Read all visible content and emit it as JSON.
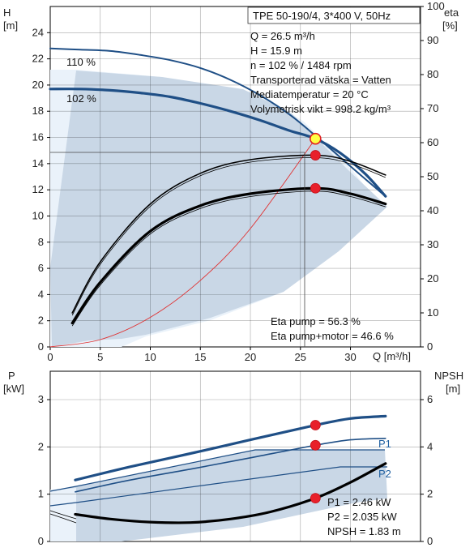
{
  "chart_data": [
    {
      "type": "line",
      "title": "TPE 50-190/4, 3*400 V, 50Hz",
      "xlabel": "Q [m³/h]",
      "ylabel_left": [
        "H",
        "[m]"
      ],
      "ylabel_right": [
        "eta",
        "[%]"
      ],
      "xlim": [
        0,
        37
      ],
      "ylim_left": [
        0,
        26
      ],
      "ylim_right": [
        0,
        100
      ],
      "x_ticks": [
        0,
        5,
        10,
        15,
        20,
        25,
        30
      ],
      "y_ticks_left": [
        0,
        2,
        4,
        6,
        8,
        10,
        12,
        14,
        16,
        18,
        20,
        22,
        24
      ],
      "y_ticks_right": [
        0,
        10,
        20,
        30,
        40,
        50,
        60,
        70,
        80,
        90,
        100
      ],
      "grid": true,
      "info_lines": [
        "Q = 26.5 m³/h",
        "H = 15.9 m",
        "n = 102 % / 1484 rpm",
        "Transporterad vätska = Vatten",
        "Mediatemperatur = 20 °C",
        "Volymetrisk vikt = 998.2 kg/m³"
      ],
      "eta_notes": [
        "Eta pump = 56.3 %",
        "Eta pump+motor = 46.6 %"
      ],
      "curve_labels": [
        "110 %",
        "102 %"
      ],
      "series": [
        {
          "name": "110 %",
          "axis": "left",
          "x": [
            0,
            3,
            6,
            9,
            12,
            15,
            18,
            21,
            24,
            27,
            30,
            33.5
          ],
          "y": [
            22.8,
            22.7,
            22.6,
            22.3,
            21.9,
            21.3,
            20.4,
            19.2,
            17.7,
            15.8,
            13.8,
            11.5
          ]
        },
        {
          "name": "102 %",
          "axis": "left",
          "x": [
            0,
            3,
            6,
            9,
            12,
            15,
            18,
            21,
            24,
            26.5,
            29,
            31.5,
            33.5
          ],
          "y": [
            19.7,
            19.7,
            19.6,
            19.4,
            19.1,
            18.6,
            18.0,
            17.3,
            16.5,
            15.9,
            14.8,
            13.2,
            11.5
          ]
        },
        {
          "name": "System curve",
          "axis": "left",
          "x": [
            0,
            5,
            10,
            15,
            20,
            26.5
          ],
          "y": [
            0,
            0.56,
            2.26,
            5.08,
            9.04,
            15.9
          ]
        },
        {
          "name": "Eta pump",
          "axis": "right",
          "x": [
            2.2,
            5,
            10,
            15,
            20,
            26.5,
            30,
            33.5
          ],
          "y": [
            10,
            25,
            42,
            51,
            55,
            56.3,
            54.5,
            50.5
          ]
        },
        {
          "name": "Eta pump+motor",
          "axis": "right",
          "x": [
            2.2,
            5,
            10,
            15,
            20,
            26.5,
            30,
            33.5
          ],
          "y": [
            7,
            19,
            34,
            41.5,
            45,
            46.6,
            45,
            42
          ]
        }
      ],
      "markers": [
        {
          "x": 26.5,
          "y": 15.9,
          "axis": "left",
          "style": "operating-point"
        },
        {
          "x": 26.5,
          "y": 56.3,
          "axis": "right",
          "style": "dot"
        },
        {
          "x": 26.5,
          "y": 46.6,
          "axis": "right",
          "style": "dot"
        }
      ]
    },
    {
      "type": "line",
      "ylabel_left": [
        "P",
        "[kW]"
      ],
      "ylabel_right": [
        "NPSH",
        "[m]"
      ],
      "xlim": [
        0,
        37
      ],
      "ylim_left": [
        0,
        3.6
      ],
      "ylim_right": [
        0,
        7.2
      ],
      "y_ticks_left": [
        0,
        1,
        2,
        3
      ],
      "y_ticks_right": [
        0,
        2,
        4,
        6
      ],
      "grid": true,
      "value_notes": [
        "P1 = 2.46 kW",
        "P2 = 2.035 kW",
        "NPSH = 1.83 m"
      ],
      "series_labels": [
        "P1",
        "P2"
      ],
      "series": [
        {
          "name": "P1",
          "axis": "left",
          "x": [
            2.5,
            8,
            14,
            20,
            26.5,
            30,
            33.5
          ],
          "y": [
            1.3,
            1.58,
            1.86,
            2.15,
            2.46,
            2.6,
            2.65
          ]
        },
        {
          "name": "P2",
          "axis": "left",
          "x": [
            2.5,
            8,
            14,
            20,
            26.5,
            30,
            33.5
          ],
          "y": [
            1.05,
            1.3,
            1.53,
            1.77,
            2.035,
            2.15,
            2.18
          ]
        },
        {
          "name": "NPSH",
          "axis": "right",
          "x": [
            2.5,
            6,
            10,
            14,
            18,
            22,
            26.5,
            30,
            33.5
          ],
          "y": [
            1.15,
            0.95,
            0.82,
            0.8,
            0.95,
            1.25,
            1.83,
            2.5,
            3.3
          ]
        }
      ],
      "markers": [
        {
          "x": 26.5,
          "y": 2.46,
          "axis": "left"
        },
        {
          "x": 26.5,
          "y": 2.035,
          "axis": "left"
        },
        {
          "x": 26.5,
          "y": 1.83,
          "axis": "right"
        }
      ]
    }
  ]
}
